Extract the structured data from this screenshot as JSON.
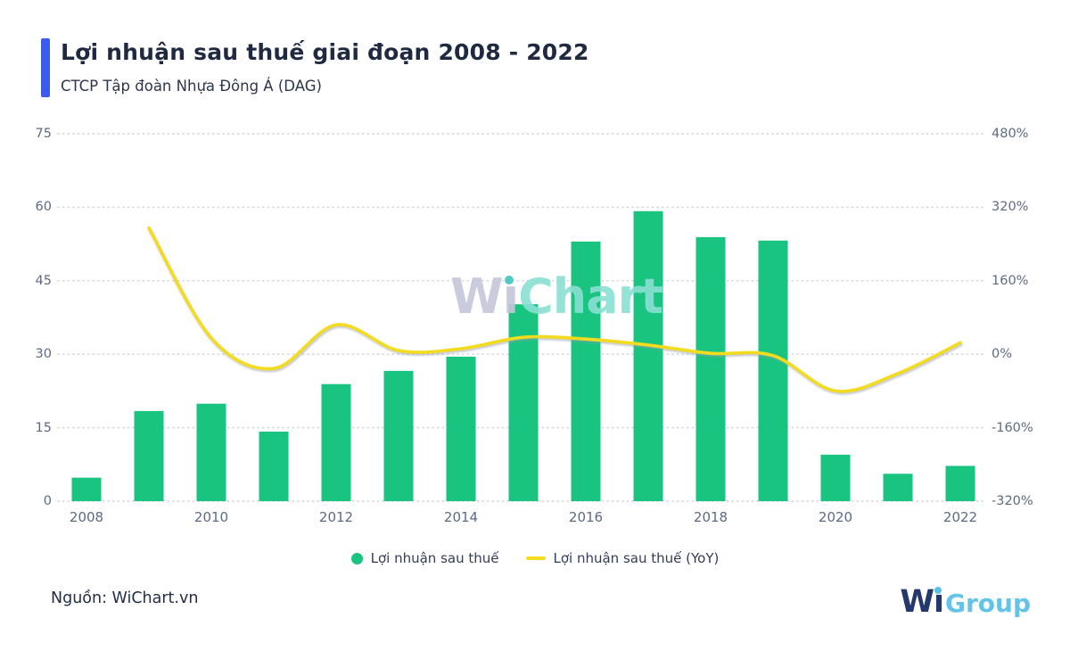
{
  "header": {
    "title": "Lợi nhuận sau thuế giai đoạn 2008 - 2022",
    "subtitle": "CTCP Tập đoàn Nhựa Đông Á (DAG)",
    "accent_color": "#3A5BF0"
  },
  "watermark": {
    "text": "WiChart"
  },
  "chart_data": {
    "type": "bar+line combo",
    "categories": [
      2008,
      2009,
      2010,
      2011,
      2012,
      2013,
      2014,
      2015,
      2016,
      2017,
      2018,
      2019,
      2020,
      2021,
      2022
    ],
    "series": [
      {
        "name": "Lợi nhuận sau thuế",
        "type": "bar",
        "axis": "left",
        "color": "#18C47F",
        "values": [
          4.8,
          18.4,
          19.9,
          14.2,
          23.9,
          26.6,
          29.5,
          40.2,
          53.0,
          59.2,
          53.9,
          53.2,
          9.5,
          5.6,
          7.2
        ]
      },
      {
        "name": "Lợi nhuận sau thuế (YoY)",
        "type": "line",
        "axis": "right",
        "color": "#F3DC20",
        "values": [
          null,
          275,
          35,
          -31,
          64,
          8,
          12,
          37,
          33,
          20,
          2,
          -3,
          -80,
          -42,
          25
        ]
      }
    ],
    "left_axis": {
      "ticks": [
        "0",
        "15",
        "30",
        "45",
        "60",
        "75"
      ],
      "range": [
        0,
        75
      ]
    },
    "right_axis": {
      "ticks": [
        "-320%",
        "-160%",
        "0%",
        "160%",
        "320%",
        "480%"
      ],
      "range": [
        -320,
        480
      ]
    },
    "x_tick_labels": [
      "2008",
      "2010",
      "2012",
      "2014",
      "2016",
      "2018",
      "2020",
      "2022"
    ],
    "grid": "horizontal dotted",
    "legend_position": "bottom center"
  },
  "footer": {
    "source": "Nguồn: WiChart.vn",
    "logo_text": "WiGroup"
  }
}
